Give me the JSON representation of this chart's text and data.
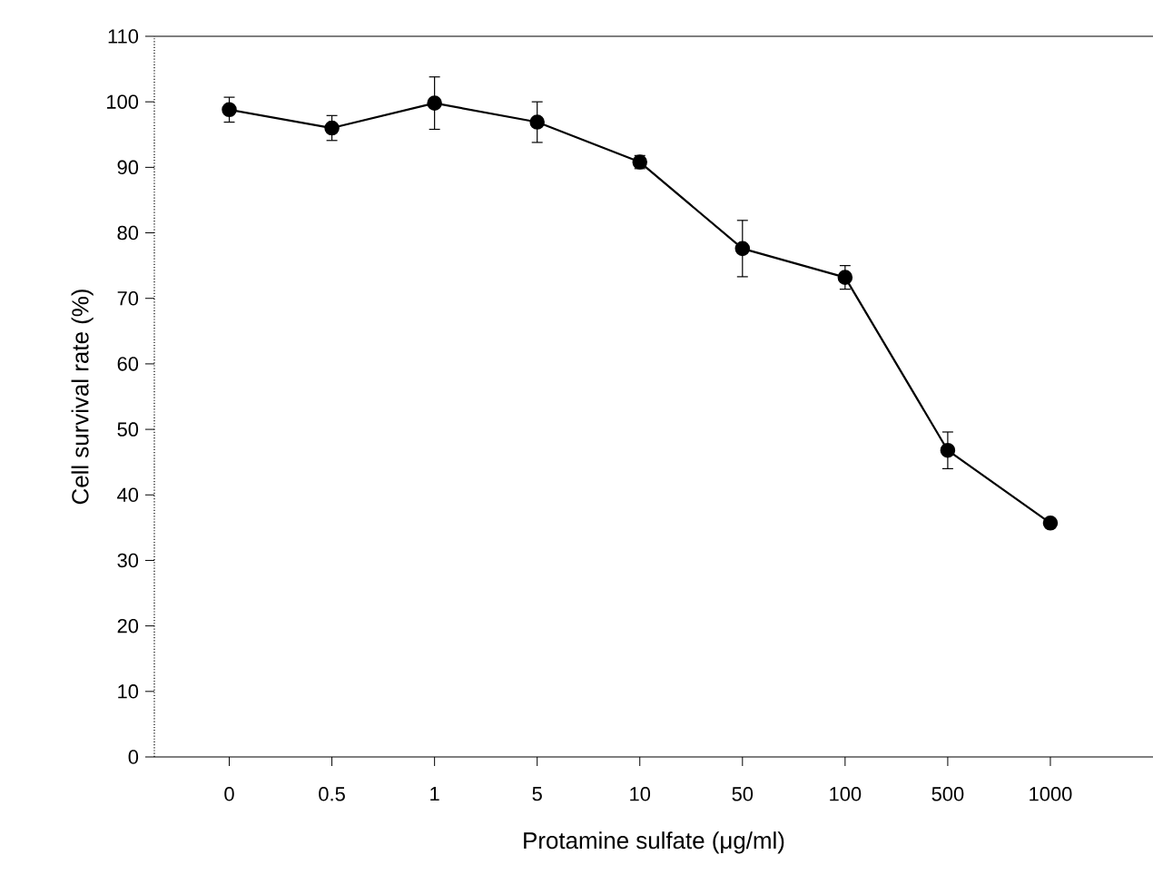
{
  "chart_data": {
    "type": "line",
    "xlabel": "Protamine sulfate (μg/ml)",
    "ylabel": "Cell survival rate (%)",
    "categories": [
      "0",
      "0.5",
      "1",
      "5",
      "10",
      "50",
      "100",
      "500",
      "1000"
    ],
    "series": [
      {
        "color": "#000000",
        "values": [
          98.8,
          96.0,
          99.8,
          96.9,
          90.8,
          77.6,
          73.2,
          46.8,
          35.7
        ],
        "errors": [
          1.9,
          1.9,
          4.0,
          3.1,
          1.0,
          4.3,
          1.8,
          2.8,
          null
        ]
      }
    ],
    "ylim": [
      0,
      110
    ],
    "yticks": [
      0,
      10,
      20,
      30,
      40,
      50,
      60,
      70,
      80,
      90,
      100,
      110
    ],
    "marker": "circle",
    "line_style": "solid"
  }
}
